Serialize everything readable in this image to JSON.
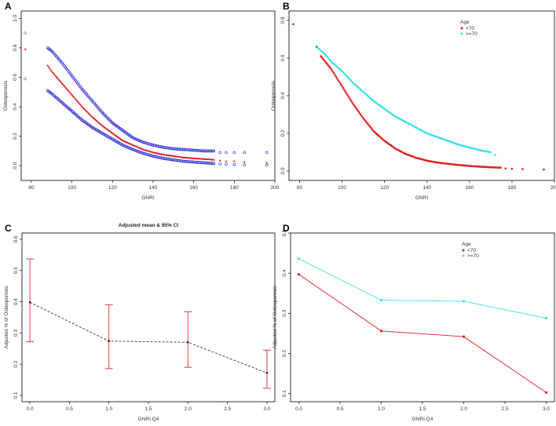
{
  "chart_data": [
    {
      "panel": "A",
      "type": "scatter",
      "title": "",
      "xlabel": "GNRI",
      "ylabel": "Osteoporosis",
      "xlim": [
        75,
        200
      ],
      "ylim": [
        -0.1,
        1.05
      ],
      "xticks": [
        80,
        100,
        120,
        140,
        160,
        180,
        200
      ],
      "yticks": [
        0.0,
        0.2,
        0.4,
        0.6,
        0.8,
        1.0
      ],
      "tick_labels_x": [
        "80",
        "100",
        "120",
        "140",
        "160",
        "180",
        "200"
      ],
      "tick_labels_y": [
        "0.0",
        "0.2",
        "0.4",
        "0.6",
        "0.8",
        "1.0"
      ],
      "curves": [
        {
          "name": "upper CI",
          "color": "#2b2bd6",
          "marker": "circle",
          "x": [
            88,
            90,
            95,
            100,
            105,
            110,
            115,
            120,
            125,
            130,
            135,
            140,
            145,
            150,
            155,
            160,
            165,
            170
          ],
          "y": [
            0.8,
            0.78,
            0.7,
            0.61,
            0.52,
            0.44,
            0.36,
            0.29,
            0.24,
            0.19,
            0.16,
            0.14,
            0.125,
            0.115,
            0.11,
            0.105,
            0.1,
            0.1
          ]
        },
        {
          "name": "estimate",
          "color": "#e02020",
          "marker": "dot",
          "x": [
            88,
            90,
            95,
            100,
            105,
            110,
            115,
            120,
            125,
            130,
            135,
            140,
            145,
            150,
            155,
            160,
            165,
            170
          ],
          "y": [
            0.68,
            0.64,
            0.56,
            0.48,
            0.4,
            0.33,
            0.27,
            0.22,
            0.17,
            0.14,
            0.11,
            0.09,
            0.075,
            0.065,
            0.055,
            0.05,
            0.045,
            0.04
          ]
        },
        {
          "name": "lower CI",
          "color": "#2b2bd6",
          "marker": "circle",
          "x": [
            88,
            90,
            95,
            100,
            105,
            110,
            115,
            120,
            125,
            130,
            135,
            140,
            145,
            150,
            155,
            160,
            165,
            170
          ],
          "y": [
            0.51,
            0.49,
            0.43,
            0.37,
            0.31,
            0.26,
            0.22,
            0.18,
            0.14,
            0.11,
            0.085,
            0.065,
            0.05,
            0.04,
            0.03,
            0.025,
            0.02,
            0.015
          ]
        }
      ],
      "points": [
        {
          "x": 77,
          "y": 0.9,
          "color": "#6a6ad8",
          "marker": "circle"
        },
        {
          "x": 77,
          "y": 0.79,
          "color": "#e02020",
          "marker": "dot"
        },
        {
          "x": 77,
          "y": 0.59,
          "color": "#6a6ad8",
          "marker": "circle"
        },
        {
          "x": 173,
          "y": 0.09,
          "color": "#2b2bd6",
          "marker": "circle"
        },
        {
          "x": 176,
          "y": 0.09,
          "color": "#2b2bd6",
          "marker": "circle"
        },
        {
          "x": 180,
          "y": 0.09,
          "color": "#2b2bd6",
          "marker": "circle"
        },
        {
          "x": 185,
          "y": 0.09,
          "color": "#2b2bd6",
          "marker": "circle"
        },
        {
          "x": 196,
          "y": 0.09,
          "color": "#2b2bd6",
          "marker": "circle"
        },
        {
          "x": 173,
          "y": 0.035,
          "color": "#e02020",
          "marker": "dot"
        },
        {
          "x": 176,
          "y": 0.03,
          "color": "#e02020",
          "marker": "dot"
        },
        {
          "x": 180,
          "y": 0.03,
          "color": "#e02020",
          "marker": "dot"
        },
        {
          "x": 185,
          "y": 0.025,
          "color": "#e02020",
          "marker": "dot"
        },
        {
          "x": 196,
          "y": 0.02,
          "color": "#e02020",
          "marker": "dot"
        },
        {
          "x": 173,
          "y": 0.012,
          "color": "#2b2bd6",
          "marker": "circle"
        },
        {
          "x": 176,
          "y": 0.01,
          "color": "#2b2bd6",
          "marker": "circle"
        },
        {
          "x": 180,
          "y": 0.008,
          "color": "#2b2bd6",
          "marker": "circle"
        },
        {
          "x": 185,
          "y": 0.006,
          "color": "#2b2bd6",
          "marker": "circle"
        },
        {
          "x": 196,
          "y": 0.004,
          "color": "#2b2bd6",
          "marker": "circle"
        }
      ]
    },
    {
      "panel": "B",
      "type": "scatter",
      "title": "",
      "xlabel": "GNRI",
      "ylabel": "Osteoporosis",
      "xlim": [
        75,
        200
      ],
      "ylim": [
        -0.05,
        0.85
      ],
      "xticks": [
        80,
        100,
        120,
        140,
        160,
        180,
        200
      ],
      "yticks": [
        0.0,
        0.2,
        0.4,
        0.6,
        0.8
      ],
      "tick_labels_x": [
        "80",
        "100",
        "120",
        "140",
        "160",
        "180",
        "200"
      ],
      "tick_labels_y": [
        "0.0",
        "0.2",
        "0.4",
        "0.6",
        "0.8"
      ],
      "legend": {
        "title": "Age",
        "entries": [
          "<70",
          ">=70"
        ],
        "position": "top-center"
      },
      "series": [
        {
          "name": "<70",
          "color": "#e02020",
          "x": [
            90,
            95,
            100,
            105,
            110,
            115,
            120,
            125,
            130,
            135,
            140,
            145,
            150,
            155,
            160,
            165,
            170,
            175
          ],
          "y": [
            0.61,
            0.54,
            0.45,
            0.36,
            0.28,
            0.21,
            0.16,
            0.12,
            0.09,
            0.07,
            0.055,
            0.045,
            0.038,
            0.032,
            0.027,
            0.023,
            0.02,
            0.018
          ]
        },
        {
          "name": ">=70",
          "color": "#3fe0e8",
          "x": [
            88,
            92,
            95,
            100,
            105,
            110,
            115,
            120,
            125,
            130,
            135,
            140,
            145,
            150,
            155,
            160,
            165,
            170
          ],
          "y": [
            0.66,
            0.62,
            0.58,
            0.53,
            0.47,
            0.42,
            0.37,
            0.33,
            0.29,
            0.26,
            0.23,
            0.2,
            0.18,
            0.16,
            0.14,
            0.125,
            0.11,
            0.1
          ]
        }
      ],
      "points": [
        {
          "x": 77,
          "y": 0.78,
          "color": "#e02020"
        },
        {
          "x": 88,
          "y": 0.66,
          "color": "#2a8a8a"
        },
        {
          "x": 172,
          "y": 0.085,
          "color": "#3fe0e8"
        },
        {
          "x": 177,
          "y": 0.014,
          "color": "#e02020"
        },
        {
          "x": 180,
          "y": 0.012,
          "color": "#e02020"
        },
        {
          "x": 185,
          "y": 0.01,
          "color": "#e02020"
        },
        {
          "x": 195,
          "y": 0.008,
          "color": "#e02020"
        }
      ]
    },
    {
      "panel": "C",
      "type": "line",
      "title": "Adjusted mean & 95% CI",
      "xlabel": "GNRI.Q4",
      "ylabel": "Adjusted % of Osteoporosis",
      "xlim": [
        -0.1,
        3.1
      ],
      "ylim": [
        0.08,
        0.62
      ],
      "xticks": [
        0.0,
        0.5,
        1.0,
        1.5,
        2.0,
        2.5,
        3.0
      ],
      "yticks": [
        0.1,
        0.2,
        0.3,
        0.4,
        0.5,
        0.6
      ],
      "tick_labels_x": [
        "0.0",
        "0.5",
        "1.0",
        "1.5",
        "2.0",
        "2.5",
        "3.0"
      ],
      "tick_labels_y": [
        "0.1",
        "0.2",
        "0.3",
        "0.4",
        "0.5",
        "0.6"
      ],
      "x": [
        0,
        1,
        2,
        3
      ],
      "values": [
        0.398,
        0.274,
        0.27,
        0.172
      ],
      "ci_low": [
        0.272,
        0.186,
        0.19,
        0.123
      ],
      "ci_high": [
        0.537,
        0.39,
        0.368,
        0.245
      ],
      "line_color": "#333333",
      "errorbar_color": "#e04040"
    },
    {
      "panel": "D",
      "type": "line",
      "title": "",
      "xlabel": "GNRI.Q4",
      "ylabel": "Adjusted % of Osteoporosis",
      "xlim": [
        -0.1,
        3.1
      ],
      "ylim": [
        0.08,
        0.5
      ],
      "xticks": [
        0.0,
        0.5,
        1.0,
        1.5,
        2.0,
        2.5,
        3.0
      ],
      "yticks": [
        0.1,
        0.2,
        0.3,
        0.4,
        0.5
      ],
      "tick_labels_x": [
        "0.0",
        "0.5",
        "1.0",
        "1.5",
        "2.0",
        "2.5",
        "3.0"
      ],
      "tick_labels_y": [
        "0.1",
        "0.2",
        "0.3",
        "0.4",
        "0.5"
      ],
      "legend": {
        "title": "Age",
        "entries": [
          "<70",
          ">=70"
        ],
        "position": "top-center"
      },
      "x": [
        0,
        1,
        2,
        3
      ],
      "series": [
        {
          "name": "<70",
          "color": "#e02020",
          "values": [
            0.397,
            0.256,
            0.242,
            0.103
          ]
        },
        {
          "name": ">=70",
          "color": "#3fe0e8",
          "values": [
            0.436,
            0.333,
            0.33,
            0.288
          ]
        }
      ]
    }
  ]
}
